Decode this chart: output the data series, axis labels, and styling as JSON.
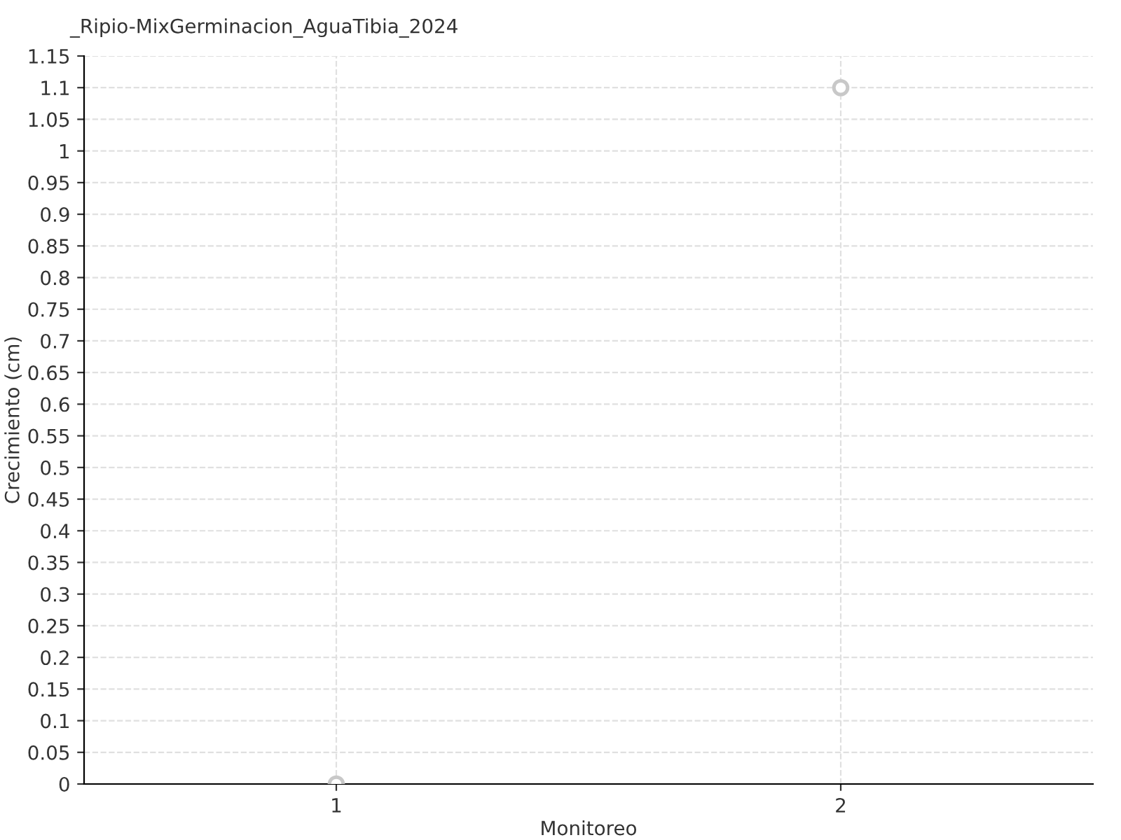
{
  "chart_data": {
    "type": "scatter",
    "title": "_Ripio-MixGerminacion_AguaTibia_2024",
    "xlabel": "Monitoreo",
    "ylabel": "Crecimiento (cm)",
    "x": [
      1,
      2
    ],
    "series": [
      {
        "color": "#c8c8c8",
        "values": [
          0,
          1.1
        ]
      }
    ],
    "marker": "circle",
    "grid": true,
    "xlim": [
      0.5,
      2.5
    ],
    "xticks": [
      1,
      2
    ],
    "ylim": [
      0,
      1.15
    ],
    "yticks": [
      0,
      0.05,
      0.1,
      0.15,
      0.2,
      0.25,
      0.3,
      0.35,
      0.4,
      0.45,
      0.5,
      0.55,
      0.6,
      0.65,
      0.7,
      0.75,
      0.8,
      0.85,
      0.9,
      0.95,
      1,
      1.05,
      1.1,
      1.15
    ]
  }
}
